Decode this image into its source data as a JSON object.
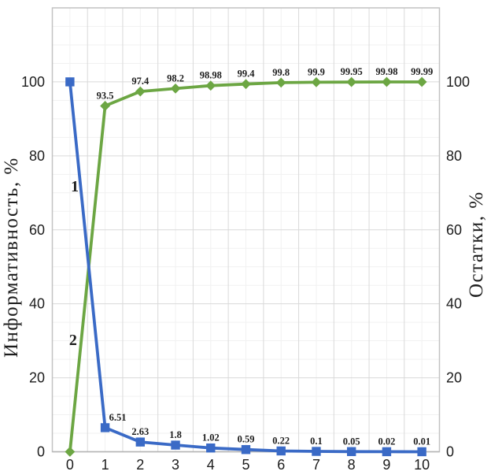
{
  "chart_data": {
    "type": "line",
    "title": "",
    "categories": [
      "0",
      "1",
      "2",
      "3",
      "4",
      "5",
      "6",
      "7",
      "8",
      "9",
      "10"
    ],
    "xlabel": "",
    "ylabel_left": "Информативность, %",
    "ylabel_right": "Остатки, %",
    "ytick_labels": [
      "0",
      "20",
      "40",
      "60",
      "80",
      "100"
    ],
    "ytick_values": [
      0,
      20,
      40,
      60,
      80,
      100
    ],
    "ylim": [
      0,
      120
    ],
    "grid": {
      "major_step": 20,
      "minor_step": 5,
      "x_minor_at_categories": true
    },
    "legend": "none",
    "series": [
      {
        "name": "1",
        "marker": "square",
        "color": "#3a6ac6",
        "values": [
          100,
          6.51,
          2.63,
          1.8,
          1.02,
          0.59,
          0.22,
          0.1,
          0.05,
          0.02,
          0.01
        ],
        "point_labels": [
          "",
          "6.51",
          "2.63",
          "1.8",
          "1.02",
          "0.59",
          "0.22",
          "0.1",
          "0.05",
          "0.02",
          "0.01"
        ],
        "label_dx": [
          0,
          16,
          0,
          0,
          0,
          0,
          0,
          0,
          0,
          0,
          0
        ]
      },
      {
        "name": "2",
        "marker": "diamond",
        "color": "#6ca643",
        "values": [
          0,
          93.5,
          97.4,
          98.2,
          98.98,
          99.4,
          99.8,
          99.9,
          99.95,
          99.98,
          99.99
        ],
        "point_labels": [
          "",
          "93.5",
          "97.4",
          "98.2",
          "98.98",
          "99.4",
          "99.8",
          "99.9",
          "99.95",
          "99.98",
          "99.99"
        ],
        "label_dx": [
          0,
          0,
          0,
          0,
          0,
          0,
          0,
          0,
          0,
          0,
          0
        ]
      }
    ],
    "annotations": [
      {
        "text": "1",
        "x": 0.14,
        "y": 70.4
      },
      {
        "text": "2",
        "x": 0.09,
        "y": 28.9
      }
    ]
  },
  "colors": {
    "background": "#ffffff",
    "grid_minor": "#f1f1f1",
    "grid_major": "#d9d9d9",
    "plot_border": "#c2c2c2",
    "axis_line": "#b5b5b5",
    "text": "#1c1c1c"
  }
}
